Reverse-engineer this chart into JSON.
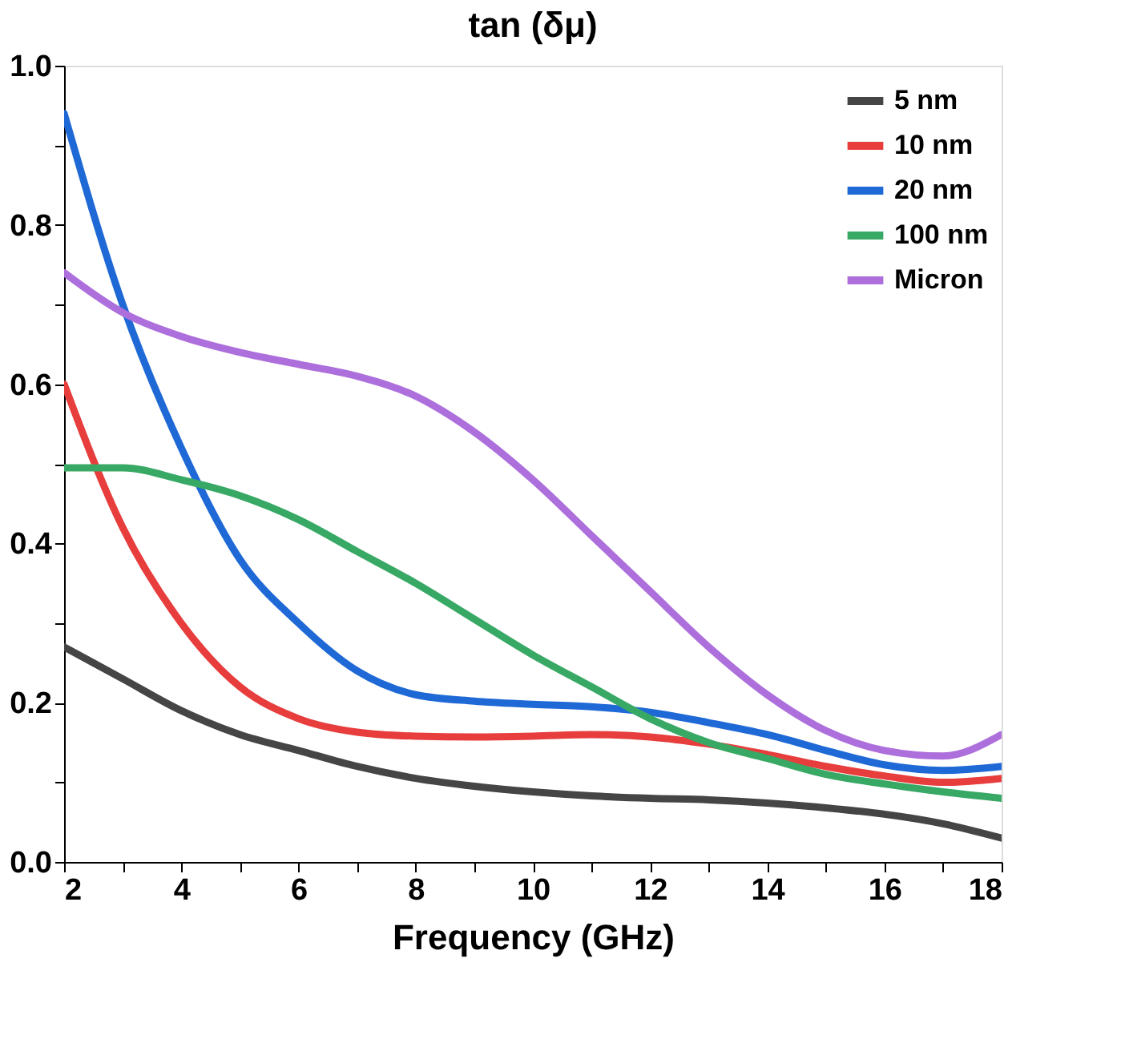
{
  "chart_data": {
    "type": "line",
    "title": "tan (δμ)",
    "xlabel": "Frequency (GHz)",
    "xlim": [
      2,
      18
    ],
    "ylim": [
      0,
      1
    ],
    "xticks": [
      2,
      {
        "value": 3,
        "label": null
      },
      4,
      {
        "value": 5,
        "label": null
      },
      6,
      {
        "value": 7,
        "label": null
      },
      8,
      {
        "value": 9,
        "label": null
      },
      10,
      {
        "value": 11,
        "label": null
      },
      12,
      {
        "value": 13,
        "label": null
      },
      14,
      {
        "value": 15,
        "label": null
      },
      16,
      {
        "value": 17,
        "label": null
      },
      18
    ],
    "yticks": [
      {
        "value": 0,
        "label": "0.0"
      },
      {
        "value": 0.1,
        "label": null
      },
      {
        "value": 0.2,
        "label": "0.2"
      },
      {
        "value": 0.3,
        "label": null
      },
      {
        "value": 0.4,
        "label": "0.4"
      },
      {
        "value": 0.5,
        "label": null
      },
      {
        "value": 0.6,
        "label": "0.6"
      },
      {
        "value": 0.7,
        "label": null
      },
      {
        "value": 0.8,
        "label": "0.8"
      },
      {
        "value": 0.9,
        "label": null
      },
      {
        "value": 1,
        "label": "1.0"
      }
    ],
    "x": [
      2,
      3,
      4,
      5,
      6,
      7,
      8,
      9,
      10,
      11,
      12,
      13,
      14,
      15,
      16,
      17,
      18
    ],
    "series": [
      {
        "name": "5 nm",
        "color": "#454545",
        "values": [
          0.27,
          0.23,
          0.19,
          0.16,
          0.14,
          0.12,
          0.105,
          0.095,
          0.088,
          0.083,
          0.08,
          0.078,
          0.074,
          0.068,
          0.06,
          0.048,
          0.03
        ]
      },
      {
        "name": "10 nm",
        "color": "#e83d3d",
        "values": [
          0.6,
          0.42,
          0.3,
          0.22,
          0.18,
          0.163,
          0.158,
          0.157,
          0.158,
          0.16,
          0.157,
          0.148,
          0.135,
          0.12,
          0.108,
          0.1,
          0.105
        ]
      },
      {
        "name": "20 nm",
        "color": "#1f69d6",
        "values": [
          0.94,
          0.7,
          0.52,
          0.38,
          0.3,
          0.24,
          0.21,
          0.202,
          0.198,
          0.195,
          0.188,
          0.175,
          0.16,
          0.14,
          0.122,
          0.115,
          0.12
        ]
      },
      {
        "name": "100 nm",
        "color": "#38a865",
        "values": [
          0.495,
          0.495,
          0.48,
          0.46,
          0.43,
          0.39,
          0.35,
          0.305,
          0.26,
          0.22,
          0.18,
          0.15,
          0.13,
          0.11,
          0.098,
          0.088,
          0.08
        ]
      },
      {
        "name": "Micron",
        "color": "#ad6fdc",
        "values": [
          0.74,
          0.69,
          0.66,
          0.64,
          0.625,
          0.61,
          0.585,
          0.54,
          0.48,
          0.41,
          0.34,
          0.27,
          0.21,
          0.165,
          0.14,
          0.133,
          0.16
        ]
      }
    ],
    "legend": "top right",
    "grid": false,
    "marker": "none",
    "line_style": "solid"
  }
}
